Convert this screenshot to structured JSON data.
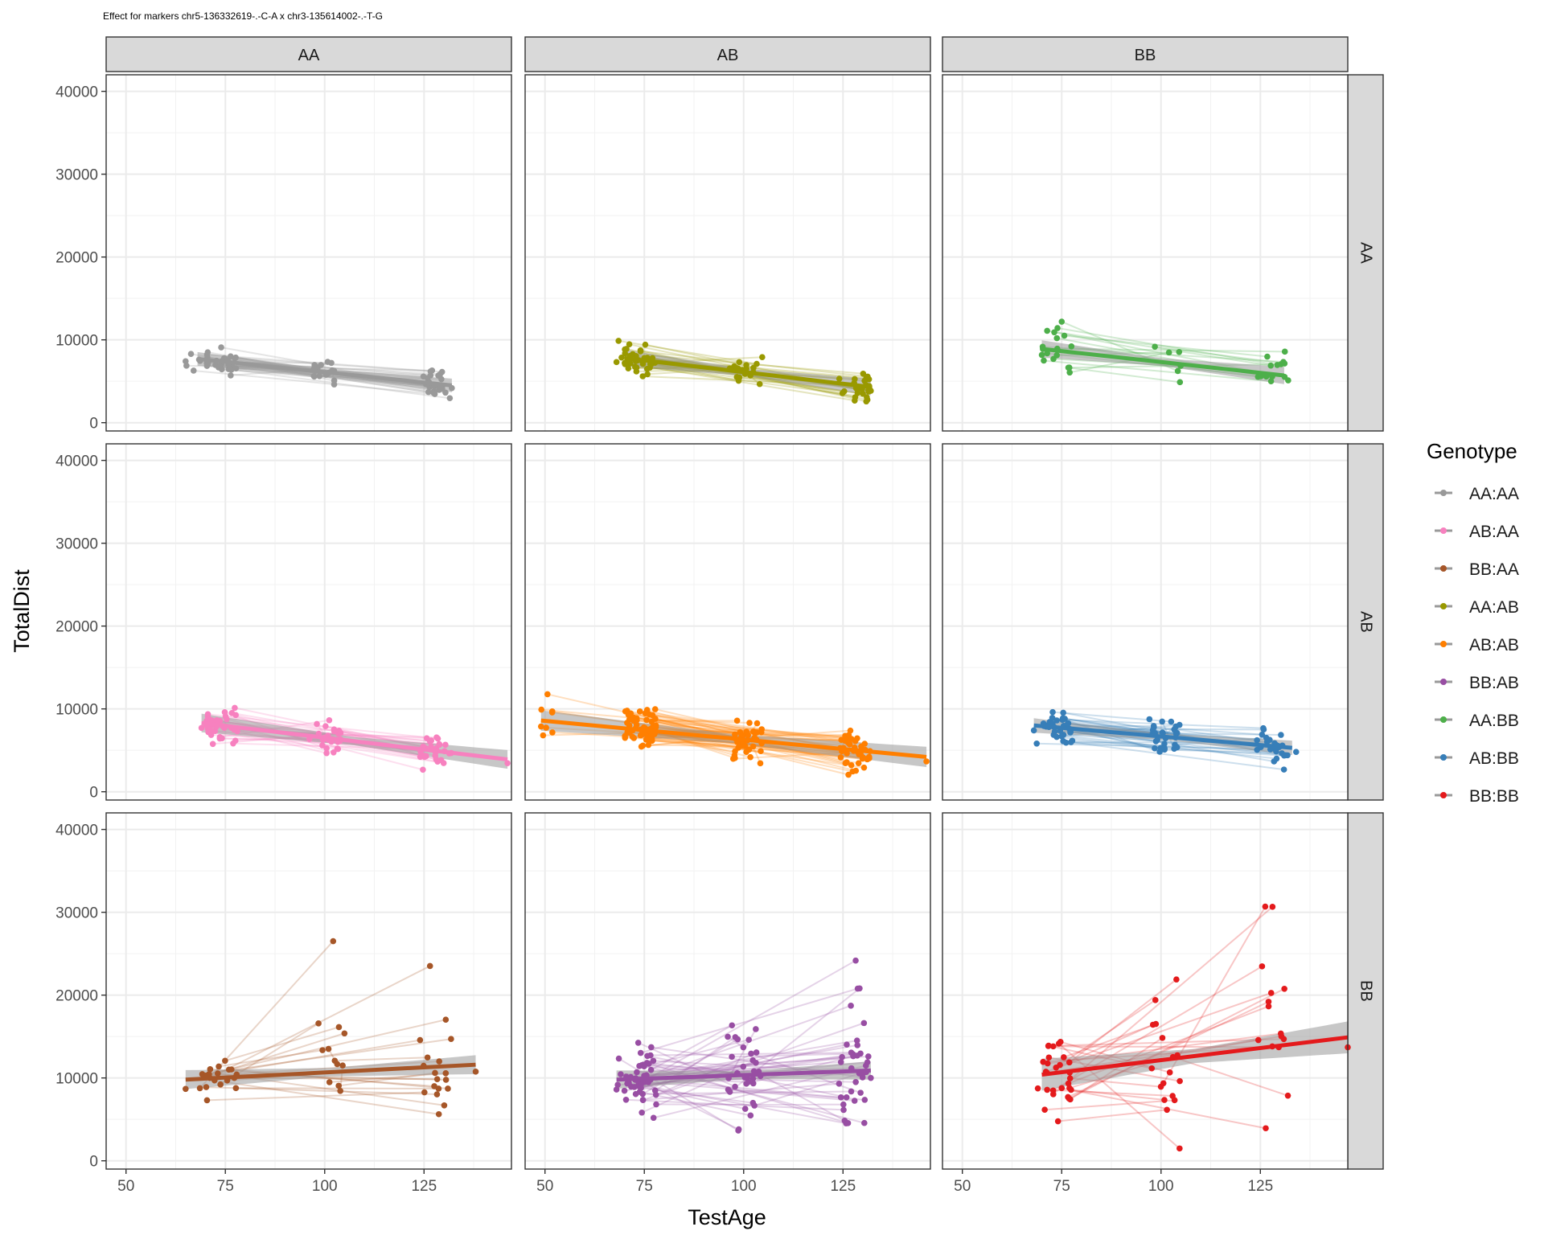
{
  "chart_data": {
    "type": "scatter",
    "title": "Effect for markers chr5-136332619-.-C-A x chr3-135614002-.-T-G",
    "xlabel": "TestAge",
    "ylabel": "TotalDist",
    "xlim": [
      45,
      147
    ],
    "ylim": [
      -1000,
      42000
    ],
    "x_ticks": [
      50,
      75,
      100,
      125
    ],
    "y_ticks": [
      0,
      10000,
      20000,
      30000,
      40000
    ],
    "col_facets": [
      "AA",
      "AB",
      "BB"
    ],
    "row_facets": [
      "AA",
      "AB",
      "BB"
    ],
    "legend": {
      "title": "Genotype",
      "position": "right",
      "entries": [
        {
          "label": "AA:AA",
          "color": "#999999"
        },
        {
          "label": "AB:AA",
          "color": "#F781BF"
        },
        {
          "label": "BB:AA",
          "color": "#A65628"
        },
        {
          "label": "AA:AB",
          "color": "#999900"
        },
        {
          "label": "AB:AB",
          "color": "#FF7F00"
        },
        {
          "label": "BB:AB",
          "color": "#984EA3"
        },
        {
          "label": "AA:BB",
          "color": "#4DAF4A"
        },
        {
          "label": "AB:BB",
          "color": "#377EB8"
        },
        {
          "label": "BB:BB",
          "color": "#E41A1C"
        }
      ]
    },
    "panels": [
      {
        "row": "AA",
        "col": "AA",
        "genotype": "AA:AA",
        "color": "#999999",
        "n": 40,
        "x_range": [
          65,
          132
        ],
        "fit": {
          "x": [
            68,
            132
          ],
          "y": [
            7700,
            4500
          ]
        },
        "spread": 1100
      },
      {
        "row": "AA",
        "col": "AB",
        "genotype": "AA:AB",
        "color": "#999900",
        "n": 40,
        "x_range": [
          68,
          132
        ],
        "fit": {
          "x": [
            70,
            132
          ],
          "y": [
            7800,
            4300
          ]
        },
        "spread": 1500
      },
      {
        "row": "AA",
        "col": "BB",
        "genotype": "AA:BB",
        "color": "#4DAF4A",
        "n": 18,
        "x_range": [
          70,
          132
        ],
        "fit": {
          "x": [
            70,
            131
          ],
          "y": [
            8900,
            5700
          ]
        },
        "spread": 1800
      },
      {
        "row": "AB",
        "col": "AA",
        "genotype": "AB:AA",
        "color": "#F781BF",
        "n": 45,
        "x_range": [
          69,
          146
        ],
        "fit": {
          "x": [
            69,
            146
          ],
          "y": [
            8300,
            3900
          ]
        },
        "spread": 1500
      },
      {
        "row": "AB",
        "col": "AB",
        "genotype": "AB:AB",
        "color": "#FF7F00",
        "n": 75,
        "x_range": [
          49,
          146
        ],
        "fit": {
          "x": [
            49,
            146
          ],
          "y": [
            8600,
            4200
          ]
        },
        "spread": 1800
      },
      {
        "row": "AB",
        "col": "BB",
        "genotype": "AB:BB",
        "color": "#377EB8",
        "n": 45,
        "x_range": [
          68,
          134
        ],
        "fit": {
          "x": [
            68,
            133
          ],
          "y": [
            8000,
            5300
          ]
        },
        "spread": 1500
      },
      {
        "row": "BB",
        "col": "AA",
        "genotype": "BB:AA",
        "color": "#A65628",
        "n": 25,
        "x_range": [
          65,
          138
        ],
        "fit": {
          "x": [
            65,
            138
          ],
          "y": [
            9800,
            11600
          ]
        },
        "spread": 2800
      },
      {
        "row": "BB",
        "col": "AB",
        "genotype": "BB:AB",
        "color": "#984EA3",
        "n": 60,
        "x_range": [
          68,
          132
        ],
        "fit": {
          "x": [
            68,
            132
          ],
          "y": [
            9800,
            10900
          ]
        },
        "spread": 3000
      },
      {
        "row": "BB",
        "col": "BB",
        "genotype": "BB:BB",
        "color": "#E41A1C",
        "n": 30,
        "x_range": [
          69,
          147
        ],
        "fit": {
          "x": [
            70,
            147
          ],
          "y": [
            10400,
            14900
          ]
        },
        "spread": 4000
      }
    ]
  }
}
